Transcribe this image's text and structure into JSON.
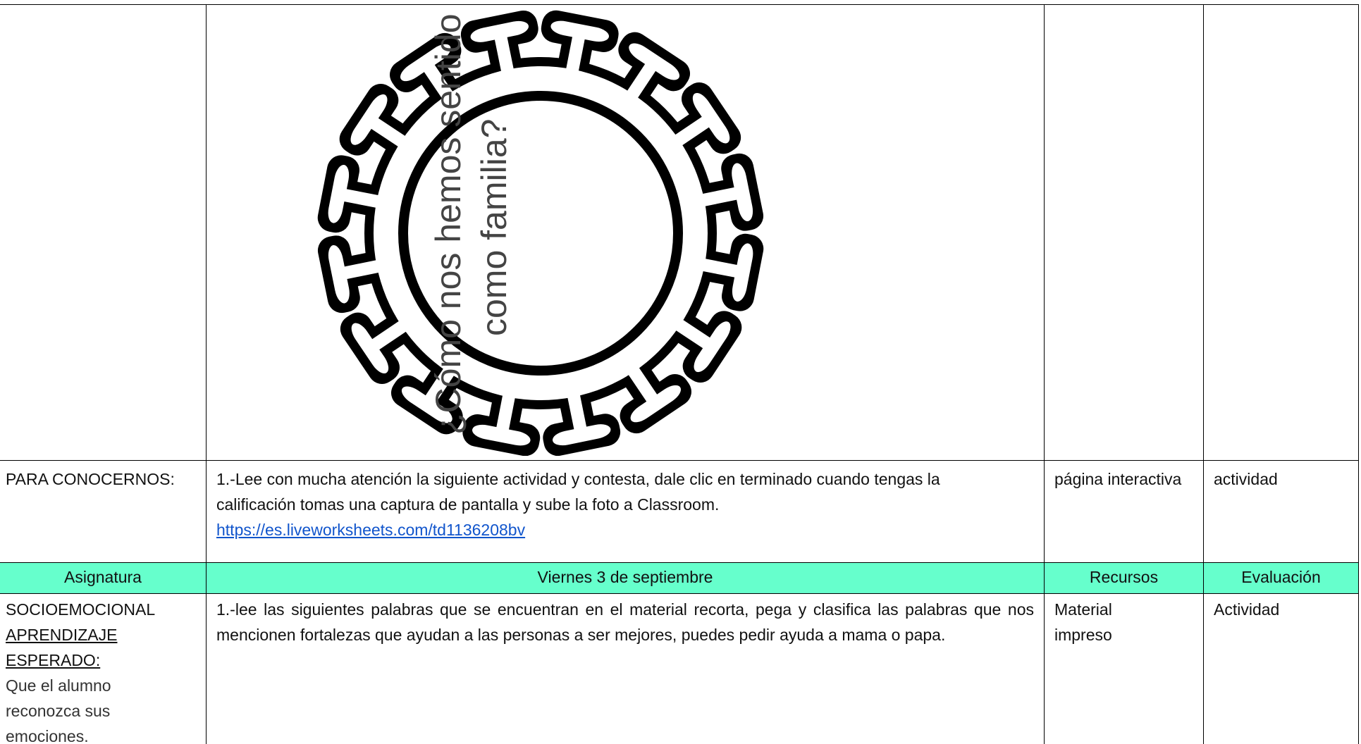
{
  "image_caption": {
    "line1": "¿Cómo nos hemos sentido",
    "line2": "como familia?"
  },
  "table": {
    "intro_row": {
      "label": "PARA CONOCERNOS:",
      "activity": "1.-Lee con mucha atención la siguiente actividad y contesta, dale clic en terminado cuando tengas la calificación tomas una captura de pantalla y sube la foto a Classroom.",
      "link": "https://es.liveworksheets.com/td1136208bv",
      "resources": "página interactiva",
      "evaluation": "actividad"
    },
    "header": [
      "Asignatura",
      "Viernes 3 de septiembre",
      "Recursos",
      "Evaluación"
    ],
    "subject_row": {
      "label": {
        "subject": "SOCIOEMOCIONAL",
        "expected": "APRENDIZAJE ESPERADO:",
        "goal": "Que el alumno reconozca sus emociones."
      },
      "activity": "1.-lee las siguientes palabras que se encuentran en el material recorta, pega y clasifica las palabras que nos mencionen fortalezas que ayudan a las personas a ser mejores, puedes pedir ayuda a mama o papa.",
      "resources": "Material impreso",
      "evaluation": "Actividad"
    }
  }
}
